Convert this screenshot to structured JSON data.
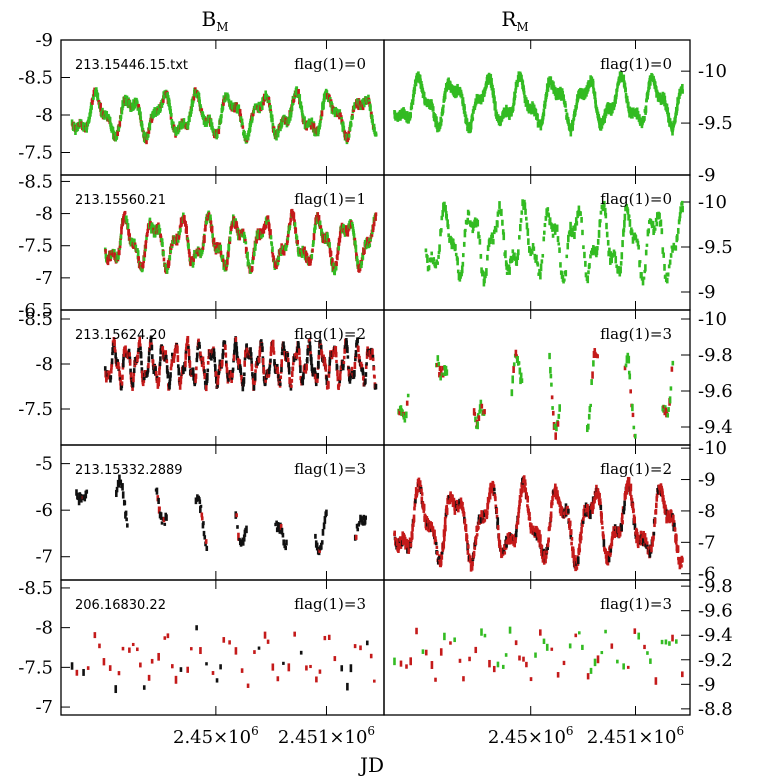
{
  "figure": {
    "col_titles": [
      {
        "main": "B",
        "sub": "M"
      },
      {
        "main": "R",
        "sub": "M"
      }
    ],
    "xlabel": "JD",
    "xticks": [
      {
        "value": 2450000,
        "mant": "2.45",
        "times": "×",
        "base": "10",
        "exp": "6"
      },
      {
        "value": 2451000,
        "mant": "2.451",
        "times": "×",
        "base": "10",
        "exp": "6"
      }
    ],
    "xlim": [
      2448600,
      2451520
    ],
    "colors": {
      "green": "#33bb22",
      "red": "#c41a1a",
      "black": "#111111",
      "frame": "#000000"
    }
  },
  "chart_data": [
    {
      "type": "scatter",
      "row": 0,
      "col": 0,
      "star": "213.15446.15.txt",
      "flag": "flag(1)=0",
      "ylim": [
        -7.2,
        -9.0
      ],
      "yticks": [
        "-9",
        "-8.5",
        "-8",
        "-7.5"
      ],
      "ytick_values": [
        -9,
        -8.5,
        -8,
        -7.5
      ],
      "style": "green-red",
      "dense": true,
      "mean": -8.0,
      "amp": 0.22,
      "period": 300,
      "t0": 2448700,
      "t1": 2451450
    },
    {
      "type": "scatter",
      "row": 0,
      "col": 1,
      "star": "",
      "flag": "flag(1)=0",
      "ylim": [
        -9.0,
        -10.3
      ],
      "yticks": [
        "-10",
        "-9.5",
        "-9"
      ],
      "ytick_values": [
        -10,
        -9.5,
        -9
      ],
      "style": "green",
      "dense": true,
      "mean": -9.7,
      "amp": 0.18,
      "period": 320,
      "t0": 2448700,
      "t1": 2451450
    },
    {
      "type": "scatter",
      "row": 1,
      "col": 0,
      "star": "213.15560.21",
      "flag": "flag(1)=1",
      "ylim": [
        -6.5,
        -8.6
      ],
      "yticks": [
        "-8.5",
        "-8",
        "-7.5",
        "-7",
        "-6.5"
      ],
      "ytick_values": [
        -8.5,
        -8,
        -7.5,
        -7,
        -6.5
      ],
      "style": "red-green",
      "dense": true,
      "mean": -7.55,
      "amp": 0.3,
      "period": 250,
      "t0": 2449000,
      "t1": 2451450
    },
    {
      "type": "scatter",
      "row": 1,
      "col": 1,
      "star": "",
      "flag": "flag(1)=0",
      "ylim": [
        -8.8,
        -10.3
      ],
      "yticks": [
        "-10",
        "-9.5",
        "-9"
      ],
      "ytick_values": [
        -10,
        -9.5,
        -9
      ],
      "style": "green",
      "dense": false,
      "mean": -9.55,
      "amp": 0.3,
      "period": 250,
      "t0": 2449000,
      "t1": 2451450
    },
    {
      "type": "scatter",
      "row": 2,
      "col": 0,
      "star": "213.15624.20",
      "flag": "flag(1)=2",
      "ylim": [
        -7.1,
        -8.6
      ],
      "yticks": [
        "-8.5",
        "-8",
        "-7.5"
      ],
      "ytick_values": [
        -8.5,
        -8,
        -7.5
      ],
      "style": "black-red",
      "dense": true,
      "mean": -8.0,
      "amp": 0.18,
      "period": 110,
      "t0": 2449000,
      "t1": 2451450
    },
    {
      "type": "scatter",
      "row": 2,
      "col": 1,
      "star": "",
      "flag": "flag(1)=3",
      "ylim": [
        -9.3,
        -10.05
      ],
      "yticks": [
        "-10",
        "-9.8",
        "-9.6",
        "-9.4"
      ],
      "ytick_values": [
        -10,
        -9.8,
        -9.6,
        -9.4
      ],
      "style": "green-red-seg",
      "dense": false,
      "mean": -9.6,
      "amp": 0.18,
      "period": 250,
      "t0": 2448700,
      "t1": 2451450
    },
    {
      "type": "scatter",
      "row": 3,
      "col": 0,
      "star": "213.15332.2889",
      "flag": "flag(1)=3",
      "ylim": [
        -7.5,
        -4.6
      ],
      "yticks": [
        "-5",
        "-6",
        "-7"
      ],
      "ytick_values": [
        -5,
        -6,
        -7
      ],
      "style": "black-seg",
      "dense": false,
      "mean": -6.1,
      "amp": 0.55,
      "period": 330,
      "t0": 2448700,
      "t1": 2451450
    },
    {
      "type": "scatter",
      "row": 3,
      "col": 1,
      "star": "",
      "flag": "flag(1)=2",
      "ylim": [
        -5.8,
        -10.1
      ],
      "yticks": [
        "-10",
        "-9",
        "-8",
        "-7",
        "-6"
      ],
      "ytick_values": [
        -10,
        -9,
        -8,
        -7,
        -6
      ],
      "style": "red-black",
      "dense": true,
      "mean": -7.6,
      "amp": 0.9,
      "period": 330,
      "t0": 2448700,
      "t1": 2451450
    },
    {
      "type": "scatter",
      "row": 4,
      "col": 0,
      "star": "206.16830.22",
      "flag": "flag(1)=3",
      "ylim": [
        -6.9,
        -8.6
      ],
      "yticks": [
        "-8.5",
        "-8",
        "-7.5",
        "-7"
      ],
      "ytick_values": [
        -8.5,
        -8,
        -7.5,
        -7
      ],
      "style": "sparse-red",
      "dense": false,
      "mean": -7.6,
      "amp": 0.25,
      "period": 300,
      "t0": 2448700,
      "t1": 2451450
    },
    {
      "type": "scatter",
      "row": 4,
      "col": 1,
      "star": "",
      "flag": "flag(1)=3",
      "ylim": [
        -8.75,
        -9.85
      ],
      "yticks": [
        "-9.8",
        "-9.6",
        "-9.4",
        "-9.2",
        "-9",
        "-8.8"
      ],
      "ytick_values": [
        -9.8,
        -9.6,
        -9.4,
        -9.2,
        -9,
        -8.8
      ],
      "style": "sparse-red-green",
      "dense": false,
      "mean": -9.25,
      "amp": 0.15,
      "period": 300,
      "t0": 2448700,
      "t1": 2451450
    }
  ]
}
